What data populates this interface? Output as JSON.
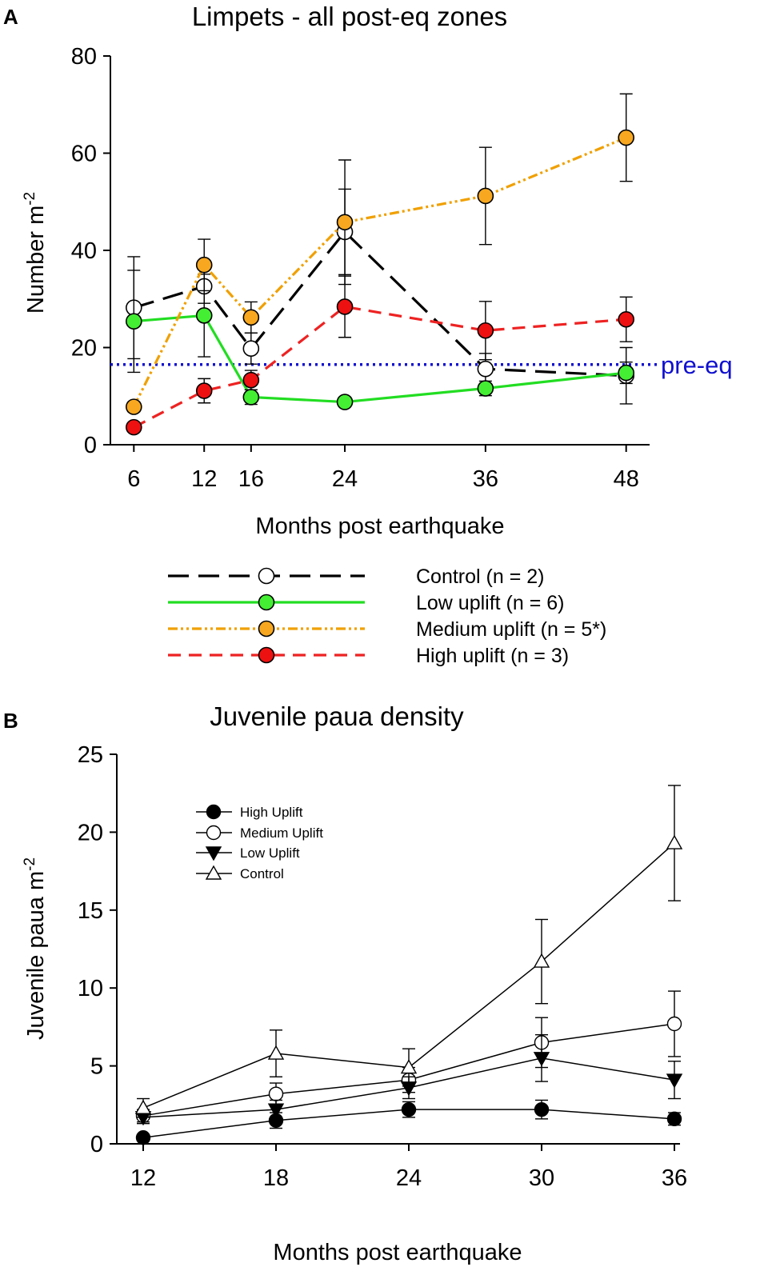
{
  "chart_data": [
    {
      "panel_label": "A",
      "type": "line",
      "title": "Limpets - all post-eq zones",
      "xlabel": "Months post earthquake",
      "ylabel": "Number m",
      "ylabel_sup": "-2",
      "x": [
        6,
        12,
        16,
        24,
        36,
        48
      ],
      "xticks": [
        "6",
        "12",
        "16",
        "24",
        "36",
        "48"
      ],
      "xlim": [
        4,
        50
      ],
      "ylim": [
        0,
        80
      ],
      "yticks": [
        0,
        20,
        40,
        60,
        80
      ],
      "reference_line": {
        "value": 16.5,
        "label": "pre-eq",
        "color": "#1010d0"
      },
      "series": [
        {
          "name": "Control (n = 2)",
          "color": "#000000",
          "fill": "#ffffff",
          "dash": "26,12",
          "values": [
            28.2,
            32.6,
            19.8,
            43.8,
            15.6,
            14.2
          ],
          "errors": [
            10.5,
            3.5,
            3.2,
            8.8,
            3.2,
            5.8
          ]
        },
        {
          "name": "Low uplift (n = 6)",
          "color": "#22dd22",
          "fill": "#44ee33",
          "dash": "",
          "values": [
            25.4,
            26.6,
            9.8,
            8.8,
            11.6,
            14.8
          ],
          "errors": [
            10.5,
            8.5,
            1.5,
            0.8,
            1.5,
            2.2
          ]
        },
        {
          "name": "Medium uplift (n = 5*)",
          "color": "#f0a000",
          "fill": "#f7a820",
          "dash": "12,4,3,4,3,4",
          "values": [
            7.8,
            37.0,
            26.2,
            45.8,
            51.2,
            63.2
          ],
          "errors": [
            1.0,
            5.3,
            3.2,
            12.8,
            10.0,
            9.0
          ]
        },
        {
          "name": "High uplift (n = 3)",
          "color": "#ee2222",
          "fill": "#ee1111",
          "dash": "16,10",
          "values": [
            3.6,
            11.1,
            13.3,
            28.4,
            23.5,
            25.8
          ],
          "errors": [
            0.6,
            2.5,
            2.0,
            6.3,
            6.0,
            4.6
          ]
        }
      ]
    },
    {
      "panel_label": "B",
      "type": "line",
      "title": "Juvenile paua density",
      "xlabel": "Months post earthquake",
      "ylabel": "Juvenile paua m",
      "ylabel_sup": "-2",
      "x": [
        12,
        18,
        24,
        30,
        36
      ],
      "xticks": [
        "12",
        "18",
        "24",
        "30",
        "36"
      ],
      "xlim": [
        12,
        36
      ],
      "ylim": [
        0,
        25
      ],
      "yticks": [
        0,
        5,
        10,
        15,
        20,
        25
      ],
      "series": [
        {
          "name": "High Uplift",
          "marker": "circle-filled",
          "values": [
            0.4,
            1.5,
            2.2,
            2.2,
            1.6
          ],
          "errors": [
            0.1,
            0.5,
            0.5,
            0.6,
            0.4
          ]
        },
        {
          "name": "Medium Uplift",
          "marker": "circle-open",
          "values": [
            1.8,
            3.2,
            4.1,
            6.5,
            7.7
          ],
          "errors": [
            0.4,
            0.7,
            0.8,
            1.6,
            2.1
          ]
        },
        {
          "name": "Low Uplift",
          "marker": "triangle-down-filled",
          "values": [
            1.7,
            2.2,
            3.6,
            5.5,
            4.1
          ],
          "errors": [
            0.4,
            0.6,
            0.7,
            1.5,
            1.2
          ]
        },
        {
          "name": "Control",
          "marker": "triangle-up-open",
          "values": [
            2.3,
            5.8,
            4.9,
            11.7,
            19.3
          ],
          "errors": [
            0.6,
            1.5,
            1.2,
            2.7,
            3.7
          ]
        }
      ]
    }
  ]
}
